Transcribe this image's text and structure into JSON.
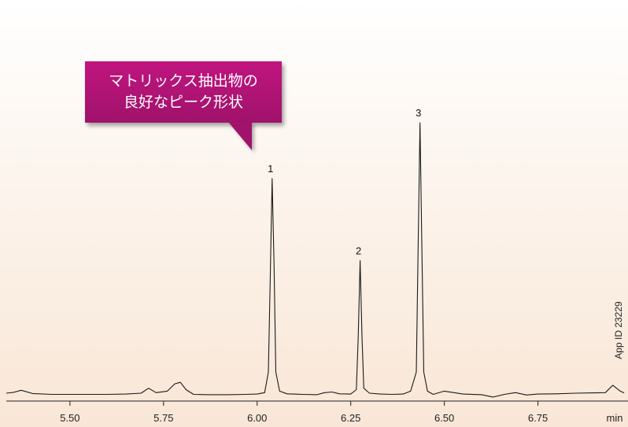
{
  "callout": {
    "line1": "マトリックス抽出物の",
    "line2": "良好なピーク形状",
    "color": "#b0147a"
  },
  "app_id": "App ID 23229",
  "chart_data": {
    "type": "line",
    "title": "",
    "xlabel": "min",
    "ylabel": "",
    "xlim": [
      5.33,
      6.98
    ],
    "ylim": [
      0,
      100
    ],
    "x_ticks": [
      5.5,
      5.75,
      6.0,
      6.25,
      6.5,
      6.75
    ],
    "x_tick_labels": [
      "5.50",
      "5.75",
      "6.00",
      "6.25",
      "6.50",
      "6.75"
    ],
    "grid": false,
    "line_color": "#1a1a1a",
    "peaks": [
      {
        "label": "1",
        "x": 6.04,
        "y": 74
      },
      {
        "label": "2",
        "x": 6.275,
        "y": 46
      },
      {
        "label": "3",
        "x": 6.435,
        "y": 93
      }
    ],
    "series": [
      {
        "x": [
          5.33,
          5.35,
          5.37,
          5.4,
          5.45,
          5.5,
          5.55,
          5.6,
          5.65,
          5.69,
          5.71,
          5.73,
          5.76,
          5.78,
          5.795,
          5.81,
          5.83,
          5.87,
          5.92,
          5.97,
          6.0,
          6.02,
          6.03,
          6.035,
          6.04,
          6.045,
          6.05,
          6.06,
          6.08,
          6.12,
          6.16,
          6.18,
          6.2,
          6.22,
          6.25,
          6.265,
          6.27,
          6.275,
          6.28,
          6.285,
          6.3,
          6.33,
          6.36,
          6.39,
          6.41,
          6.425,
          6.43,
          6.435,
          6.44,
          6.445,
          6.455,
          6.47,
          6.5,
          6.55,
          6.6,
          6.63,
          6.66,
          6.69,
          6.72,
          6.75,
          6.8,
          6.85,
          6.9,
          6.93,
          6.95,
          6.97,
          6.98
        ],
        "y": [
          0.8,
          1.1,
          1.8,
          0.7,
          0.4,
          0.4,
          0.4,
          0.4,
          0.5,
          0.8,
          2.5,
          1.0,
          1.5,
          4.0,
          4.5,
          2.0,
          0.4,
          0.3,
          0.3,
          0.4,
          0.5,
          1.0,
          8.0,
          40.0,
          74.0,
          45.0,
          8.0,
          1.5,
          0.6,
          0.4,
          0.3,
          1.0,
          1.2,
          0.6,
          0.5,
          2.0,
          20.0,
          46.0,
          20.0,
          2.5,
          0.8,
          0.5,
          0.4,
          0.5,
          1.5,
          8.0,
          50.0,
          93.0,
          50.0,
          8.0,
          1.5,
          0.4,
          1.5,
          0.5,
          0.3,
          -0.5,
          0.4,
          1.0,
          0.2,
          0.5,
          0.6,
          0.8,
          0.9,
          1.0,
          3.5,
          1.5,
          0.9
        ]
      }
    ]
  }
}
